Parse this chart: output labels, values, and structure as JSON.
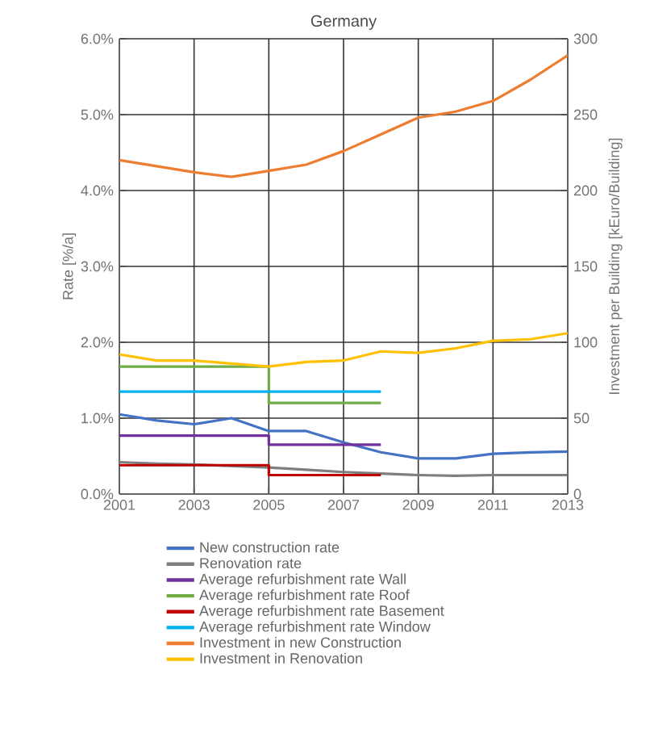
{
  "chart_data": {
    "type": "line",
    "title": "Germany",
    "ylabel": "Rate [%/a]",
    "y2label": "Investment per Building [kEuro/Building]",
    "x": [
      2001,
      2002,
      2003,
      2004,
      2005,
      2006,
      2007,
      2008,
      2009,
      2010,
      2011,
      2012,
      2013
    ],
    "xlim": [
      2001,
      2013
    ],
    "xticks": [
      2001,
      2003,
      2005,
      2007,
      2009,
      2011,
      2013
    ],
    "ylim": [
      0,
      6
    ],
    "yticks": [
      {
        "value": 0,
        "label": "0.0%"
      },
      {
        "value": 1,
        "label": "1.0%"
      },
      {
        "value": 2,
        "label": "2.0%"
      },
      {
        "value": 3,
        "label": "3.0%"
      },
      {
        "value": 4,
        "label": "4.0%"
      },
      {
        "value": 5,
        "label": "5.0%"
      },
      {
        "value": 6,
        "label": "6.0%"
      }
    ],
    "y2lim": [
      0,
      300
    ],
    "y2ticks": [
      0,
      50,
      100,
      150,
      200,
      250,
      300
    ],
    "grid": true,
    "legend": "bottom",
    "marker": "none",
    "line_style": "solid",
    "series": [
      {
        "name": "New construction rate",
        "color": "#4472c4",
        "values": [
          1.05,
          0.97,
          0.92,
          1.0,
          0.83,
          0.83,
          0.68,
          0.55,
          0.47,
          0.47,
          0.53,
          0.55,
          0.56
        ]
      },
      {
        "name": "Renovation rate",
        "color": "#7f7f7f",
        "values": [
          0.42,
          0.4,
          0.39,
          null,
          0.35,
          0.32,
          0.29,
          0.27,
          0.25,
          0.24,
          0.25,
          0.25,
          0.25
        ]
      },
      {
        "name": "Average refurbishment rate Wall",
        "color": "#7030a0",
        "x": [
          2001,
          2005,
          2005,
          2008
        ],
        "values": [
          0.77,
          0.77,
          0.65,
          0.65
        ]
      },
      {
        "name": "Average refurbishment rate Roof",
        "color": "#70ad47",
        "x": [
          2001,
          2005,
          2005,
          2008
        ],
        "values": [
          1.68,
          1.68,
          1.2,
          1.2
        ]
      },
      {
        "name": "Average refurbishment rate Basement",
        "color": "#c00000",
        "x": [
          2001,
          2005,
          2005,
          2008
        ],
        "values": [
          0.38,
          0.38,
          0.25,
          0.25
        ]
      },
      {
        "name": "Average refurbishment rate Window",
        "color": "#00b0f0",
        "x": [
          2001,
          2008
        ],
        "values": [
          1.35,
          1.35
        ]
      },
      {
        "name": "Investment in new Construction",
        "color": "#ed7d31",
        "axis": "y2",
        "values": [
          220,
          216,
          212,
          209,
          213,
          217,
          226,
          237,
          248,
          252,
          259,
          273,
          289
        ]
      },
      {
        "name": "Investment in Renovation",
        "color": "#ffc000",
        "axis": "y2",
        "values": [
          92,
          88,
          88,
          86,
          84,
          87,
          88,
          94,
          93,
          96,
          101,
          102,
          106
        ]
      }
    ]
  }
}
